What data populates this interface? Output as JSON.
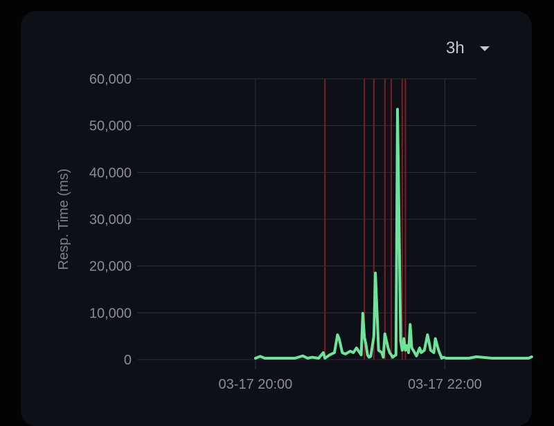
{
  "range_selector": {
    "value": "3h",
    "icon": "caret-down-icon"
  },
  "colors": {
    "background": "#020305",
    "card": "#0d1016",
    "grid": "#2f333a",
    "line": "#6ee39a",
    "incident": "#7a1f25",
    "text": "#8a8d93"
  },
  "chart_data": {
    "type": "line",
    "title": "",
    "xlabel": "",
    "ylabel": "Resp. Time (ms)",
    "ylim": [
      0,
      60000
    ],
    "yticks": [
      0,
      10000,
      20000,
      30000,
      40000,
      50000,
      60000
    ],
    "ytick_labels": [
      "0",
      "10,000",
      "20,000",
      "30,000",
      "40,000",
      "50,000",
      "60,000"
    ],
    "xlim": [
      "03-17 18:45",
      "03-17 22:20"
    ],
    "xticks": [
      "03-17 20:00",
      "03-17 22:00"
    ],
    "xtick_labels": [
      "03-17 20:00",
      "03-17 22:00"
    ],
    "grid": true,
    "incidents": [
      "03-17 20:44",
      "03-17 21:09",
      "03-17 21:15",
      "03-17 21:22",
      "03-17 21:26",
      "03-17 21:33",
      "03-17 21:35"
    ],
    "series": [
      {
        "x": [
          "03-17 20:00",
          "03-17 20:03",
          "03-17 20:06",
          "03-17 20:10",
          "03-17 20:15",
          "03-17 20:20",
          "03-17 20:25",
          "03-17 20:30",
          "03-17 20:33",
          "03-17 20:36",
          "03-17 20:40",
          "03-17 20:43",
          "03-17 20:44",
          "03-17 20:47",
          "03-17 20:50",
          "03-17 20:52",
          "03-17 20:53",
          "03-17 20:55",
          "03-17 20:57",
          "03-17 21:00",
          "03-17 21:02",
          "03-17 21:04",
          "03-17 21:06",
          "03-17 21:07",
          "03-17 21:08",
          "03-17 21:09",
          "03-17 21:10",
          "03-17 21:11",
          "03-17 21:12",
          "03-17 21:13",
          "03-17 21:15",
          "03-17 21:16",
          "03-17 21:18",
          "03-17 21:20",
          "03-17 21:21",
          "03-17 21:22",
          "03-17 21:23",
          "03-17 21:24",
          "03-17 21:25",
          "03-17 21:26",
          "03-17 21:27",
          "03-17 21:28",
          "03-17 21:29",
          "03-17 21:30",
          "03-17 21:32",
          "03-17 21:33",
          "03-17 21:34",
          "03-17 21:35",
          "03-17 21:36",
          "03-17 21:37",
          "03-17 21:38",
          "03-17 21:39",
          "03-17 21:40",
          "03-17 21:42",
          "03-17 21:44",
          "03-17 21:45",
          "03-17 21:47",
          "03-17 21:49",
          "03-17 21:51",
          "03-17 21:53",
          "03-17 21:54",
          "03-17 21:56",
          "03-17 21:58",
          "03-17 21:59",
          "03-17 22:01",
          "03-17 22:05",
          "03-17 22:10",
          "03-17 22:15",
          "03-17 22:20",
          "03-17 22:30",
          "03-17 22:40",
          "03-17 22:53",
          "03-17 22:55"
        ],
        "y": [
          300,
          700,
          300,
          300,
          300,
          300,
          300,
          800,
          300,
          500,
          300,
          1500,
          300,
          1000,
          1500,
          5300,
          4500,
          1500,
          1200,
          1800,
          1500,
          2500,
          1500,
          1000,
          9900,
          4800,
          3200,
          1000,
          500,
          700,
          5000,
          18500,
          2000,
          1500,
          500,
          5500,
          4000,
          2500,
          1500,
          1000,
          500,
          800,
          1000,
          53500,
          4000,
          2000,
          4500,
          2000,
          3000,
          1500,
          7500,
          2500,
          2000,
          800,
          2500,
          1500,
          2000,
          5300,
          2000,
          1500,
          4500,
          2000,
          300,
          500,
          300,
          300,
          300,
          300,
          600,
          300,
          300,
          300,
          600
        ]
      }
    ]
  }
}
